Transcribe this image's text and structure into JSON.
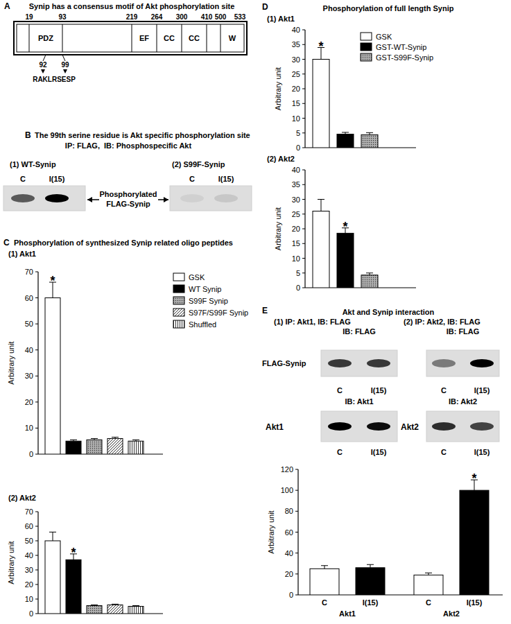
{
  "panel_a": {
    "letter": "A",
    "title": "Synip has a consensus motif of Akt phosphorylation site",
    "boundaries": [
      19,
      93,
      219,
      264,
      300,
      410,
      500,
      533
    ],
    "domains": [
      "PDZ",
      "EF",
      "CC",
      "CC",
      "W"
    ],
    "motif_positions": [
      92,
      99
    ],
    "motif": "RAKLRSESP"
  },
  "panel_b": {
    "letter": "B",
    "title": "The 99th serine residue is Akt specific phosphorylation site",
    "subtitle": "IP: FLAG,  IB: Phosphospecific Akt",
    "blots": [
      {
        "label": "(1) WT-Synip",
        "lanes": [
          "C",
          "I(15)"
        ],
        "band_intensity": [
          0.6,
          1
        ]
      },
      {
        "label": "(2) S99F-Synip",
        "lanes": [
          "C",
          "I(15)"
        ],
        "band_intensity": [
          0.06,
          0.1
        ]
      }
    ],
    "band_label": [
      "Phosphorylated",
      "FLAG-Synip"
    ]
  },
  "panel_c": {
    "letter": "C",
    "title": "Phosphorylation of synthesized Synip related oligo peptides"
  },
  "panel_d": {
    "letter": "D",
    "title": "Phosphorylation of full length Synip"
  },
  "panel_e": {
    "letter": "E",
    "title": "Akt and Synip interaction",
    "row_label": "FLAG-Synip",
    "blots": [
      {
        "label": "(1) IP: Akt1, IB: FLAG",
        "sublabel": "IB: FLAG",
        "lanes": [
          "C",
          "I(15)"
        ],
        "band_intensity": [
          0.75,
          0.75
        ],
        "lower_label": "IB: Akt1",
        "lower_row_label": "Akt1",
        "lower_lanes": [
          "C",
          "I(15)"
        ],
        "lower_band_intensity": [
          1,
          0.95
        ]
      },
      {
        "label": "(2) IP: Akt2, IB: FLAG",
        "sublabel": "IB: FLAG",
        "lanes": [
          "C",
          "I(15)"
        ],
        "band_intensity": [
          0.45,
          1
        ],
        "lower_label": "IB: Akt2",
        "lower_row_label": "Akt2",
        "lower_lanes": [
          "C",
          "I(15)"
        ],
        "lower_band_intensity": [
          0.8,
          0.7
        ]
      }
    ]
  },
  "chart_data": [
    {
      "type": "bar",
      "title": "(1) Akt1",
      "y_label": "Arbitrary unit",
      "categories": [
        "GSK",
        "WT Synip",
        "S99F Synip",
        "S97F/S99F Synip",
        "Shuffled"
      ],
      "values": [
        60,
        5,
        5.5,
        6,
        5
      ],
      "errors": [
        6,
        0.5,
        0.5,
        0.5,
        0.5
      ],
      "annotations": [
        "*",
        null,
        null,
        null,
        null
      ],
      "colors": [
        "#ffffff",
        "#000000",
        "#b0b0b0",
        "#ffffff",
        "#ffffff"
      ],
      "ylim": [
        0,
        70
      ],
      "yticks": [
        0,
        10,
        20,
        30,
        40,
        50,
        60,
        70
      ],
      "legend": "right",
      "tick_labels": "y",
      "grid": false
    },
    {
      "type": "bar",
      "title": "(2) Akt2",
      "y_label": "Arbitrary unit",
      "categories": [
        null,
        null,
        null,
        null,
        null
      ],
      "values": [
        50,
        37,
        5.5,
        6,
        5
      ],
      "errors": [
        6,
        4,
        0.5,
        0.5,
        0.5
      ],
      "annotations": [
        null,
        "*",
        null,
        null,
        null
      ],
      "colors": [
        "#ffffff",
        "#000000",
        "#b0b0b0",
        "#ffffff",
        "#ffffff"
      ],
      "ylim": [
        0,
        70
      ],
      "yticks": [
        0,
        10,
        20,
        30,
        40,
        50,
        60,
        70
      ],
      "tick_labels": "y",
      "grid": false
    },
    {
      "type": "bar",
      "title": "(1) Akt1",
      "y_label": "Arbitrary unit",
      "categories": [
        "GSK",
        "GST-WT-Synip",
        "GST-S99F-Synip"
      ],
      "values": [
        30,
        4.6,
        4.4
      ],
      "errors": [
        4,
        0.6,
        0.7
      ],
      "annotations": [
        "*",
        null,
        null
      ],
      "colors": [
        "#ffffff",
        "#000000",
        "#b0b0b0"
      ],
      "ylim": [
        0,
        40
      ],
      "yticks": [
        0,
        5,
        10,
        15,
        20,
        25,
        30,
        35,
        40
      ],
      "legend": "top-right",
      "tick_labels": "y",
      "grid": false
    },
    {
      "type": "bar",
      "title": "(2) Akt2",
      "y_label": "Arbitrary unit",
      "categories": [
        null,
        null,
        null
      ],
      "values": [
        26,
        18.5,
        4.3
      ],
      "errors": [
        4,
        1.8,
        0.7
      ],
      "annotations": [
        null,
        "*",
        null
      ],
      "colors": [
        "#ffffff",
        "#000000",
        "#b0b0b0"
      ],
      "ylim": [
        0,
        40
      ],
      "yticks": [
        0,
        5,
        10,
        15,
        20,
        25,
        30,
        35,
        40
      ],
      "tick_labels": "y",
      "grid": false
    },
    {
      "type": "bar",
      "y_label": "Arbitrary unit",
      "categories": [
        "C",
        "I(15)",
        "C",
        "I(15)"
      ],
      "groups": [
        "Akt1",
        "Akt2"
      ],
      "values": [
        25,
        26,
        19,
        100
      ],
      "errors": [
        3,
        3,
        2,
        10
      ],
      "annotations": [
        null,
        null,
        null,
        "*"
      ],
      "colors": [
        "#ffffff",
        "#000000",
        "#ffffff",
        "#000000"
      ],
      "ylim": [
        0,
        120
      ],
      "yticks": [
        0,
        20,
        40,
        60,
        80,
        100,
        120
      ],
      "tick_labels": true,
      "grid": false
    }
  ]
}
